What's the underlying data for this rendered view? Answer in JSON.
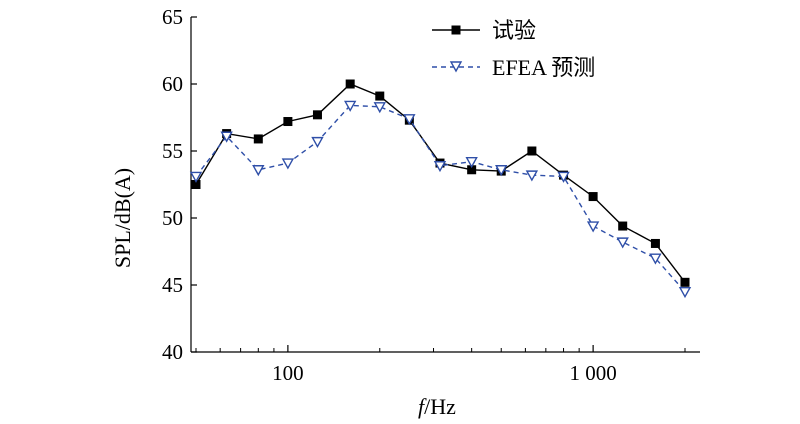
{
  "chart_data": {
    "type": "line",
    "title": "",
    "xlabel_italic": "f",
    "xlabel_rest": "/Hz",
    "ylabel": "SPL/dB(A)",
    "xscale": "log",
    "xlim": [
      50,
      2000
    ],
    "ylim": [
      40,
      65
    ],
    "x_ticks": [
      {
        "value": 100,
        "label": "100"
      },
      {
        "value": 1000,
        "label": "1 000"
      }
    ],
    "y_ticks": [
      {
        "value": 40,
        "label": "40"
      },
      {
        "value": 45,
        "label": "45"
      },
      {
        "value": 50,
        "label": "50"
      },
      {
        "value": 55,
        "label": "55"
      },
      {
        "value": 60,
        "label": "60"
      },
      {
        "value": 65,
        "label": "65"
      }
    ],
    "grid": false,
    "legend_position": "top-right",
    "x": [
      50,
      63,
      80,
      100,
      125,
      160,
      200,
      250,
      315,
      400,
      500,
      630,
      800,
      1000,
      1250,
      1600,
      2000
    ],
    "series": [
      {
        "name": "试验",
        "color": "#000000",
        "line": "solid",
        "marker": "filled-square",
        "values": [
          52.5,
          56.3,
          55.9,
          57.2,
          57.7,
          60.0,
          59.1,
          57.3,
          54.1,
          53.6,
          53.5,
          55.0,
          53.2,
          51.6,
          49.4,
          48.1,
          45.2
        ]
      },
      {
        "name": "EFEA 预测",
        "color": "#2f4fa8",
        "line": "dashed",
        "marker": "open-triangle-down",
        "values": [
          53.1,
          56.1,
          53.6,
          54.1,
          55.7,
          58.4,
          58.3,
          57.4,
          53.9,
          54.2,
          53.6,
          53.2,
          53.1,
          49.4,
          48.2,
          47.0,
          44.5
        ]
      }
    ]
  }
}
